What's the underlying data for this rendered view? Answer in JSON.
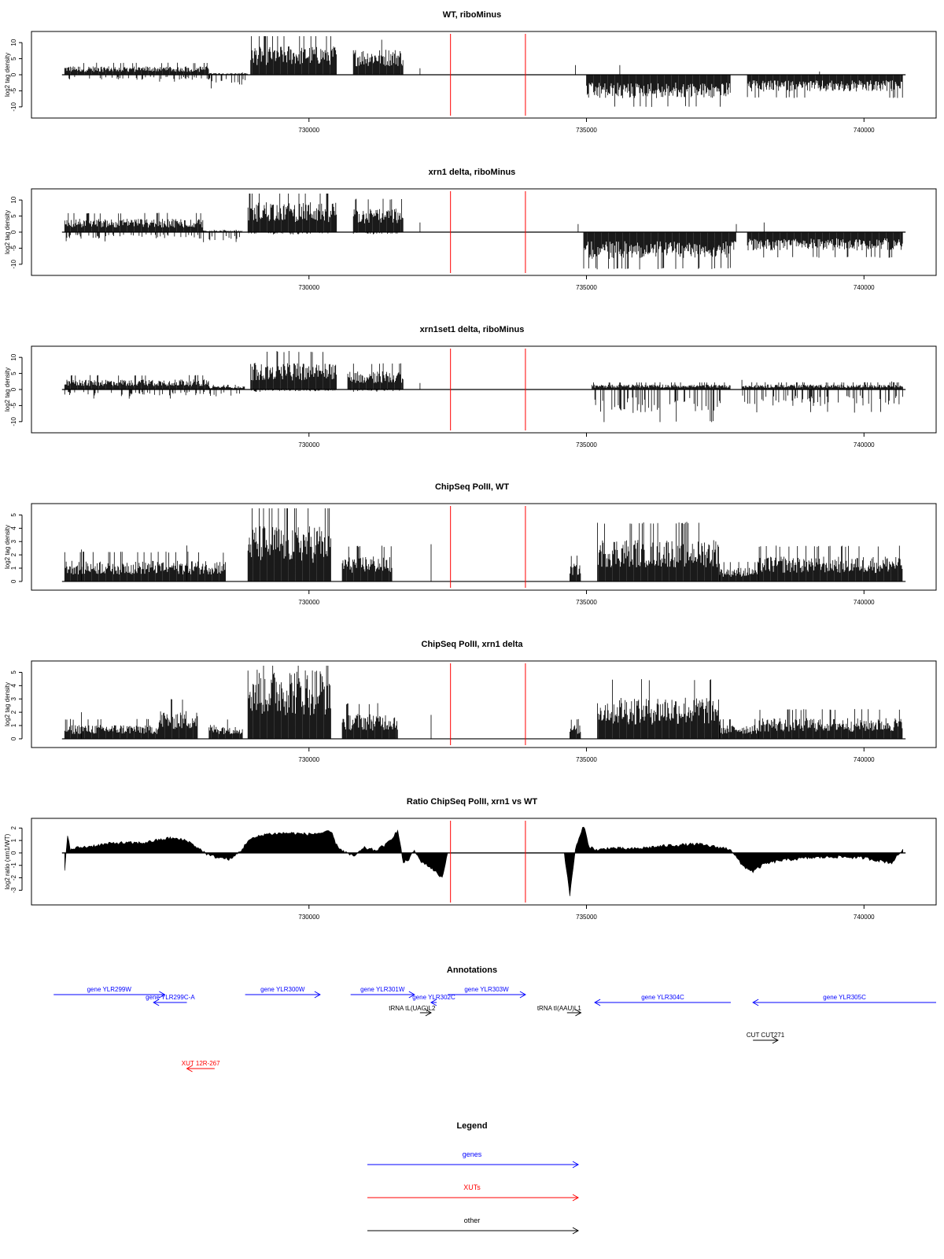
{
  "x_axis": {
    "range": [
      725000,
      741300
    ],
    "ticks": [
      730000,
      735000,
      740000
    ],
    "tick_labels": [
      "730000",
      "735000",
      "740000"
    ]
  },
  "region_marks": {
    "color": "#ff0000",
    "positions": [
      732550,
      733900
    ]
  },
  "chart_data": [
    {
      "type": "bar",
      "title": "WT, riboMinus",
      "ylabel": "log2 tag density",
      "ylim": [
        -12,
        12
      ],
      "yticks": [
        10,
        5,
        0,
        -5,
        -10
      ],
      "profile": {
        "segments": [
          {
            "from": 725600,
            "to": 728200,
            "pos": 2.5,
            "neg": -1.5
          },
          {
            "from": 728200,
            "to": 728900,
            "pos": 0.5,
            "neg": -3
          },
          {
            "from": 728950,
            "to": 730500,
            "pos": 8.5,
            "neg": 0
          },
          {
            "from": 730800,
            "to": 731700,
            "pos": 7.5,
            "neg": 0
          },
          {
            "from": 735000,
            "to": 737600,
            "pos": 0,
            "neg": -7
          },
          {
            "from": 737900,
            "to": 740700,
            "pos": 0,
            "neg": -5
          }
        ],
        "spikes": [
          {
            "x": 732000,
            "y": 2
          },
          {
            "x": 734800,
            "y": 3
          },
          {
            "x": 735600,
            "y": 3
          },
          {
            "x": 739200,
            "y": 1
          }
        ]
      }
    },
    {
      "type": "bar",
      "title": "xrn1 delta, riboMinus",
      "ylabel": "log2 tag density",
      "ylim": [
        -12,
        12
      ],
      "yticks": [
        10,
        5,
        0,
        -5,
        -10
      ],
      "profile": {
        "segments": [
          {
            "from": 725600,
            "to": 728100,
            "pos": 4,
            "neg": -2
          },
          {
            "from": 728100,
            "to": 728800,
            "pos": 0.5,
            "neg": -3.5
          },
          {
            "from": 728900,
            "to": 730500,
            "pos": 9,
            "neg": -0.5
          },
          {
            "from": 730800,
            "to": 731700,
            "pos": 7,
            "neg": -0.5
          },
          {
            "from": 734950,
            "to": 737700,
            "pos": 0,
            "neg": -8
          },
          {
            "from": 737900,
            "to": 740700,
            "pos": 0,
            "neg": -5.5
          }
        ],
        "spikes": [
          {
            "x": 732000,
            "y": 3
          },
          {
            "x": 734850,
            "y": 2.5
          },
          {
            "x": 737700,
            "y": 2.5
          },
          {
            "x": 738200,
            "y": 3
          }
        ]
      }
    },
    {
      "type": "bar",
      "title": "xrn1set1 delta, riboMinus",
      "ylabel": "log2 tag density",
      "ylim": [
        -12,
        12
      ],
      "yticks": [
        10,
        5,
        0,
        -5,
        -10
      ],
      "profile": {
        "segments": [
          {
            "from": 725600,
            "to": 728200,
            "pos": 3,
            "neg": -2
          },
          {
            "from": 728200,
            "to": 728850,
            "pos": 1,
            "neg": -2.5
          },
          {
            "from": 728950,
            "to": 730500,
            "pos": 8,
            "neg": -0.5
          },
          {
            "from": 730700,
            "to": 731700,
            "pos": 5.5,
            "neg": -0.5
          },
          {
            "from": 735100,
            "to": 737600,
            "pos": 1.5,
            "neg": -7
          },
          {
            "from": 737800,
            "to": 740700,
            "pos": 1.5,
            "neg": -5
          }
        ],
        "spikes": [
          {
            "x": 732000,
            "y": 2
          },
          {
            "x": 737800,
            "y": 3
          },
          {
            "x": 740500,
            "y": 2.5
          }
        ]
      }
    },
    {
      "type": "bar",
      "title": "ChipSeq PolII, WT",
      "ylabel": "log2 tag density",
      "ylim": [
        -0.3,
        5.5
      ],
      "yticks": [
        5,
        4,
        3,
        2,
        1,
        0
      ],
      "profile": {
        "segments": [
          {
            "from": 725600,
            "to": 728500,
            "pos": 1.5,
            "neg": 0
          },
          {
            "from": 728900,
            "to": 730400,
            "pos": 4,
            "neg": 0
          },
          {
            "from": 730600,
            "to": 731500,
            "pos": 1.8,
            "neg": 0
          },
          {
            "from": 734700,
            "to": 734900,
            "pos": 1.3,
            "neg": 0
          },
          {
            "from": 735200,
            "to": 737400,
            "pos": 3,
            "neg": 0
          },
          {
            "from": 737400,
            "to": 738100,
            "pos": 1,
            "neg": 0
          },
          {
            "from": 738100,
            "to": 740700,
            "pos": 1.8,
            "neg": 0
          }
        ],
        "spikes": [
          {
            "x": 725900,
            "y": 2.4
          },
          {
            "x": 732200,
            "y": 2.8
          },
          {
            "x": 727800,
            "y": 2.7
          }
        ]
      }
    },
    {
      "type": "bar",
      "title": "ChipSeq PolII, xrn1 delta",
      "ylabel": "log2 tag density",
      "ylim": [
        -0.3,
        5.5
      ],
      "yticks": [
        5,
        4,
        3,
        2,
        1,
        0
      ],
      "profile": {
        "segments": [
          {
            "from": 725600,
            "to": 727300,
            "pos": 1,
            "neg": 0
          },
          {
            "from": 727300,
            "to": 728000,
            "pos": 2,
            "neg": 0
          },
          {
            "from": 728200,
            "to": 728800,
            "pos": 1,
            "neg": 0
          },
          {
            "from": 728900,
            "to": 730400,
            "pos": 5,
            "neg": 0
          },
          {
            "from": 730600,
            "to": 731600,
            "pos": 1.8,
            "neg": 0
          },
          {
            "from": 734700,
            "to": 734900,
            "pos": 1,
            "neg": 0
          },
          {
            "from": 735200,
            "to": 737400,
            "pos": 3,
            "neg": 0
          },
          {
            "from": 737400,
            "to": 738100,
            "pos": 1,
            "neg": 0
          },
          {
            "from": 738100,
            "to": 740700,
            "pos": 1.5,
            "neg": 0
          }
        ],
        "spikes": [
          {
            "x": 725900,
            "y": 2
          },
          {
            "x": 732200,
            "y": 1.8
          }
        ]
      }
    },
    {
      "type": "area",
      "title": "Ratio ChipSeq PolII, xrn1 vs WT",
      "ylabel": "log2 ratio (xrn1/WT)",
      "ylim": [
        -3.8,
        2.4
      ],
      "yticks": [
        2,
        1,
        0,
        -1,
        -2,
        -3
      ],
      "x": [
        725600,
        725650,
        725700,
        725800,
        726000,
        726500,
        727000,
        727500,
        727800,
        728000,
        728200,
        728400,
        728600,
        728800,
        728900,
        729200,
        729600,
        730000,
        730400,
        730500,
        730600,
        730800,
        731000,
        731200,
        731400,
        731600,
        731700,
        731800,
        731900,
        732000,
        732200,
        732400,
        732500,
        733900,
        734000,
        734500,
        734600,
        734700,
        734800,
        734950,
        735050,
        735200,
        735400,
        735800,
        736500,
        737000,
        737600,
        737800,
        738000,
        738200,
        738500,
        739000,
        739500,
        740000,
        740500,
        740700
      ],
      "values": [
        -1.3,
        1.5,
        0.2,
        0.4,
        0.5,
        0.8,
        0.8,
        1.2,
        1.0,
        0.4,
        -0.2,
        -0.4,
        -0.5,
        0.3,
        1.0,
        1.5,
        1.6,
        1.5,
        1.7,
        0.6,
        0.2,
        -0.3,
        0.4,
        0.2,
        0.7,
        1.8,
        -0.8,
        -0.5,
        0.2,
        -0.6,
        -1.2,
        -2.0,
        0,
        0,
        0,
        0,
        0,
        -3.4,
        0.3,
        2.2,
        0.5,
        0.2,
        0.4,
        0.3,
        0.6,
        0.7,
        0.3,
        -1.0,
        -1.5,
        -0.9,
        -0.6,
        -0.4,
        -0.3,
        -0.4,
        -0.8,
        0.3
      ]
    },
    {
      "type": "annotations",
      "title": "Annotations",
      "range_end": 741300,
      "features": [
        {
          "label": "gene YLR299W",
          "start": 725400,
          "end": 727400,
          "kind": "genes",
          "row": 0
        },
        {
          "label": "gene YLR299C-A",
          "start": 727800,
          "end": 727200,
          "kind": "genes",
          "row": 1
        },
        {
          "label": "gene YLR300W",
          "start": 728850,
          "end": 730200,
          "kind": "genes",
          "row": 0
        },
        {
          "label": "gene YLR301W",
          "start": 730750,
          "end": 731900,
          "kind": "genes",
          "row": 0
        },
        {
          "label": "gene YLR302C",
          "start": 732300,
          "end": 732200,
          "kind": "genes",
          "row": 1
        },
        {
          "label": "gene YLR303W",
          "start": 732500,
          "end": 733900,
          "kind": "genes",
          "row": 0
        },
        {
          "label": "tRNA tL(UAG)L2",
          "start": 732000,
          "end": 732200,
          "kind": "other",
          "row": 2
        },
        {
          "label": "tRNA tI(AAU)L1",
          "start": 734650,
          "end": 734900,
          "kind": "other",
          "row": 2
        },
        {
          "label": "gene YLR304C",
          "start": 737600,
          "end": 735150,
          "kind": "genes",
          "row": 1
        },
        {
          "label": "gene YLR305C",
          "start": 741300,
          "end": 738000,
          "kind": "genes",
          "row": 1
        },
        {
          "label": "CUT CUT271",
          "start": 738000,
          "end": 738450,
          "kind": "other",
          "row": 4
        },
        {
          "label": "XUT 12R-267",
          "start": 728300,
          "end": 727800,
          "kind": "XUTs",
          "row": 7
        }
      ]
    },
    {
      "type": "legend",
      "title": "Legend",
      "entries": [
        {
          "label": "genes",
          "color": "#0000ff"
        },
        {
          "label": "XUTs",
          "color": "#ff0000"
        },
        {
          "label": "other",
          "color": "#000000"
        }
      ]
    }
  ]
}
